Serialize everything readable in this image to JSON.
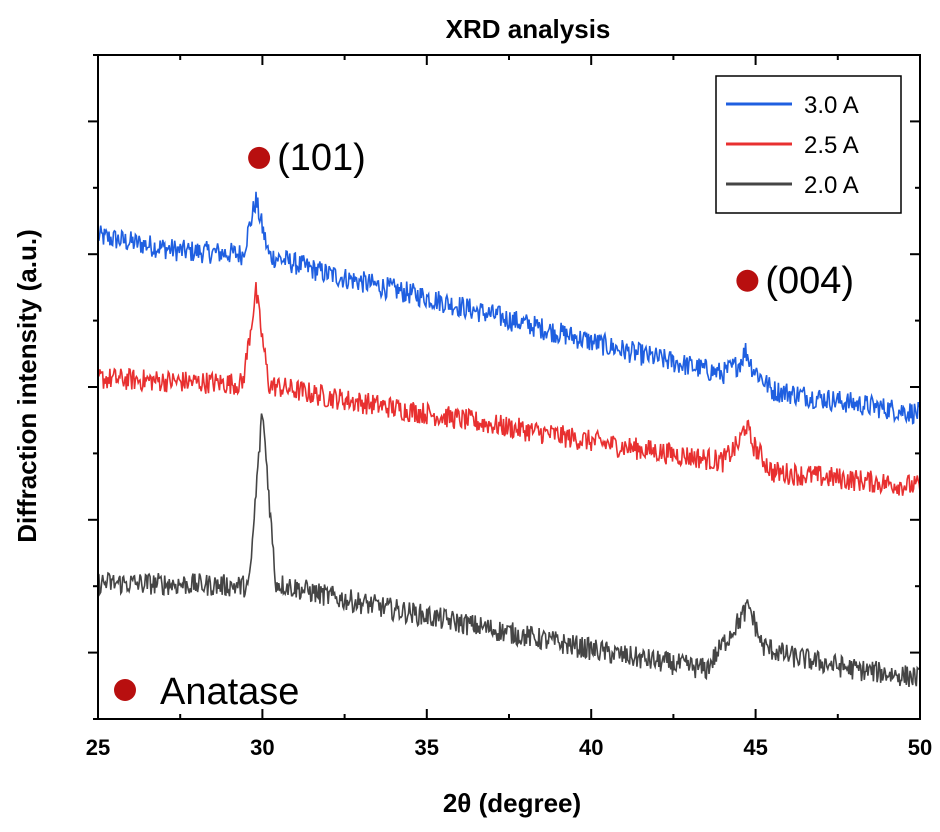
{
  "chart_data": {
    "type": "line",
    "title": "XRD analysis",
    "xlabel": "2θ (degree)",
    "ylabel": "Diffraction intensity (a.u.)",
    "xlim": [
      25,
      50
    ],
    "ylim": [
      0,
      10
    ],
    "x_ticks": [
      25,
      30,
      35,
      40,
      45,
      50
    ],
    "x_tick_labels": [
      "25",
      "30",
      "35",
      "40",
      "45",
      "50"
    ],
    "y_tick_labels_shown": false,
    "grid": false,
    "legend_position": "top-right",
    "series": [
      {
        "name": "3.0 A",
        "color": "#1f5fe0",
        "points": [
          [
            25,
            7.27
          ],
          [
            27.5,
            7.05
          ],
          [
            29.4,
            7.0
          ],
          [
            29.65,
            7.5
          ],
          [
            29.8,
            7.82
          ],
          [
            29.95,
            7.5
          ],
          [
            30.2,
            6.98
          ],
          [
            32,
            6.7
          ],
          [
            35,
            6.35
          ],
          [
            38,
            5.95
          ],
          [
            41,
            5.55
          ],
          [
            44,
            5.2
          ],
          [
            44.5,
            5.35
          ],
          [
            44.7,
            5.55
          ],
          [
            44.9,
            5.3
          ],
          [
            45.5,
            4.95
          ],
          [
            48,
            4.75
          ],
          [
            50,
            4.6
          ]
        ]
      },
      {
        "name": "2.5 A",
        "color": "#e83030",
        "points": [
          [
            25,
            5.13
          ],
          [
            27.5,
            5.08
          ],
          [
            29.4,
            5.05
          ],
          [
            29.65,
            5.9
          ],
          [
            29.8,
            6.45
          ],
          [
            29.95,
            5.9
          ],
          [
            30.2,
            5.03
          ],
          [
            32,
            4.85
          ],
          [
            35,
            4.6
          ],
          [
            38,
            4.35
          ],
          [
            41,
            4.1
          ],
          [
            44,
            3.88
          ],
          [
            44.5,
            4.15
          ],
          [
            44.7,
            4.45
          ],
          [
            44.9,
            4.15
          ],
          [
            45.5,
            3.72
          ],
          [
            48,
            3.6
          ],
          [
            50,
            3.5
          ]
        ]
      },
      {
        "name": "2.0 A",
        "color": "#454545",
        "points": [
          [
            25,
            2.05
          ],
          [
            27.5,
            2.03
          ],
          [
            29.6,
            2.0
          ],
          [
            29.85,
            3.7
          ],
          [
            30.0,
            4.65
          ],
          [
            30.15,
            3.7
          ],
          [
            30.4,
            2.05
          ],
          [
            32,
            1.85
          ],
          [
            35,
            1.55
          ],
          [
            38,
            1.25
          ],
          [
            41,
            0.95
          ],
          [
            43.5,
            0.75
          ],
          [
            44.8,
            1.7
          ],
          [
            45.2,
            1.1
          ],
          [
            46,
            0.95
          ],
          [
            48,
            0.75
          ],
          [
            50,
            0.62
          ]
        ]
      }
    ],
    "annotations": [
      {
        "text": "(101)",
        "x": 29.9,
        "y": 8.45
      },
      {
        "text": "(004)",
        "x": 44.75,
        "y": 6.6
      }
    ],
    "marker_legend": {
      "text": "Anatase",
      "color": "#b80f0f"
    }
  }
}
